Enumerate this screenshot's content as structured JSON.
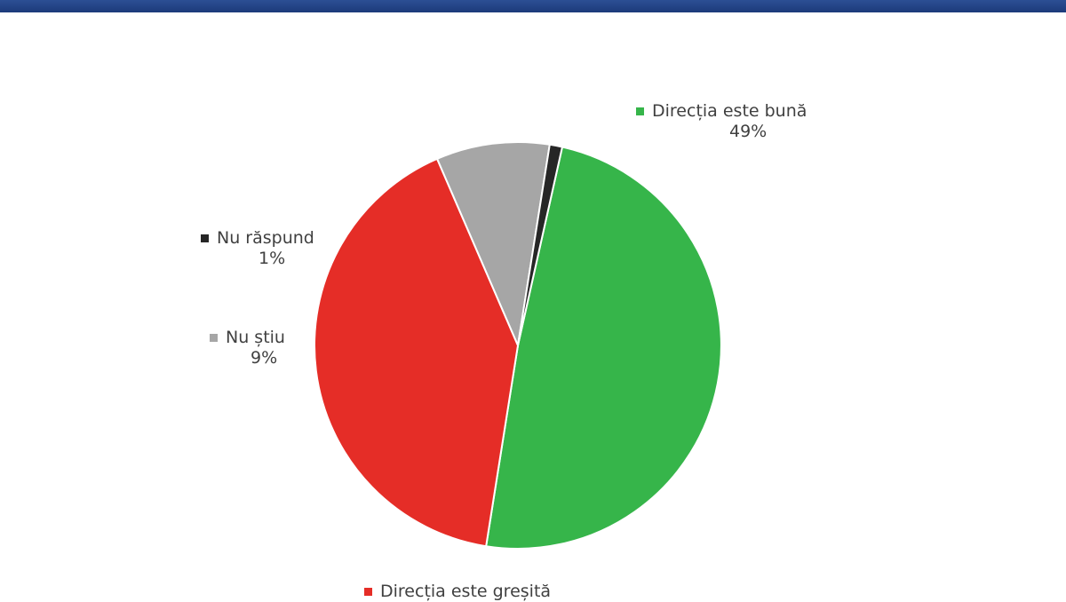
{
  "chart_data": {
    "type": "pie",
    "start_angle_deg": -77.4,
    "clockwise": true,
    "slices": [
      {
        "label": "Direcția este bună",
        "value": 49,
        "value_label": "49%",
        "color": "#36b54a"
      },
      {
        "label": "Direcția este greșită",
        "value": 41,
        "value_label": "",
        "color": "#e52d27"
      },
      {
        "label": "Nu știu",
        "value": 9,
        "value_label": "9%",
        "color": "#a6a6a6"
      },
      {
        "label": "Nu răspund",
        "value": 1,
        "value_label": "1%",
        "color": "#262626"
      }
    ]
  },
  "colors": {
    "header_band": "#1f3f80",
    "slice_border": "#ffffff"
  }
}
